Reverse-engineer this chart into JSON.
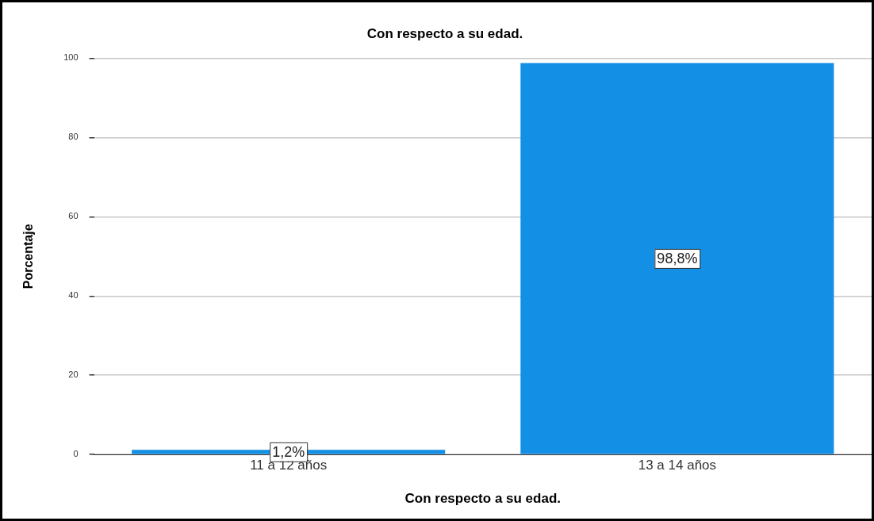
{
  "chart_data": {
    "type": "bar",
    "title": "Con respecto a su edad.",
    "xlabel": "Con respecto a su edad.",
    "ylabel": "Porcentaje",
    "categories": [
      "11 a 12 años",
      "13 a 14 años"
    ],
    "values": [
      1.2,
      98.8
    ],
    "value_labels": [
      "1,2%",
      "98,8%"
    ],
    "color": "#1390e6",
    "ylim": [
      0,
      100
    ],
    "yticks": [
      0,
      20,
      40,
      60,
      80,
      100
    ],
    "grid": "y",
    "legend": false
  }
}
